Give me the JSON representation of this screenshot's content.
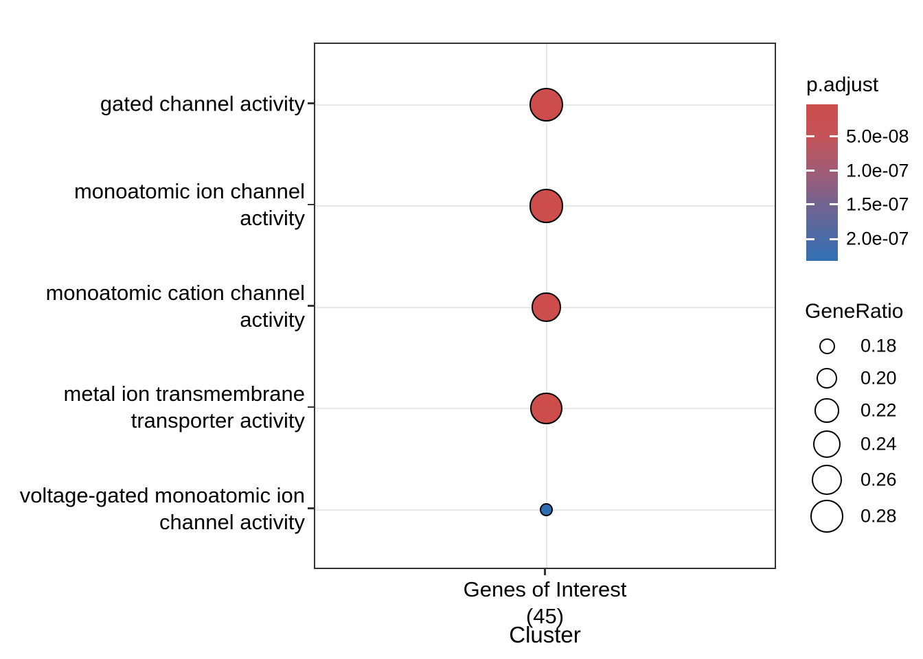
{
  "chart_data": {
    "type": "scatter",
    "title": "",
    "xlabel": "Cluster",
    "x_categories": [
      "Genes of Interest\n(45)"
    ],
    "ylabel": "",
    "categories": [
      "gated channel activity",
      "monoatomic ion channel\nactivity",
      "monoatomic cation channel\nactivity",
      "metal ion transmembrane\ntransporter activity",
      "voltage-gated monoatomic ion\nchannel activity"
    ],
    "points": [
      {
        "category": "gated channel activity",
        "x": "Genes of Interest (45)",
        "gene_ratio": 0.29,
        "p_adjust": 1e-08,
        "color": "#CD4D4D"
      },
      {
        "category": "monoatomic ion channel activity",
        "x": "Genes of Interest (45)",
        "gene_ratio": 0.29,
        "p_adjust": 1e-08,
        "color": "#CD4D4D"
      },
      {
        "category": "monoatomic cation channel activity",
        "x": "Genes of Interest (45)",
        "gene_ratio": 0.25,
        "p_adjust": 1.5e-08,
        "color": "#CD4D4D"
      },
      {
        "category": "metal ion transmembrane transporter activity",
        "x": "Genes of Interest (45)",
        "gene_ratio": 0.27,
        "p_adjust": 1.2e-08,
        "color": "#CD4D4D"
      },
      {
        "category": "voltage-gated monoatomic ion channel activity",
        "x": "Genes of Interest (45)",
        "gene_ratio": 0.17,
        "p_adjust": 2.3e-07,
        "color": "#2E6DB2"
      }
    ],
    "color_legend": {
      "title": "p.adjust",
      "tick_labels": [
        "5.0e-08",
        "1.0e-07",
        "1.5e-07",
        "2.0e-07"
      ],
      "low_color": "#CD4E4C",
      "high_color": "#3270B3",
      "gradient_stops": [
        {
          "pos": 0,
          "color": "#CD4E4C"
        },
        {
          "pos": 21,
          "color": "#C35459"
        },
        {
          "pos": 42,
          "color": "#A35C75"
        },
        {
          "pos": 64,
          "color": "#736390"
        },
        {
          "pos": 86,
          "color": "#4A6BA6"
        },
        {
          "pos": 100,
          "color": "#3270B3"
        }
      ]
    },
    "size_legend": {
      "title": "GeneRatio",
      "values": [
        "0.18",
        "0.20",
        "0.22",
        "0.24",
        "0.26",
        "0.28"
      ]
    },
    "layout_hints": {
      "grid": true,
      "legend_position": "right",
      "panel_border": true
    }
  }
}
